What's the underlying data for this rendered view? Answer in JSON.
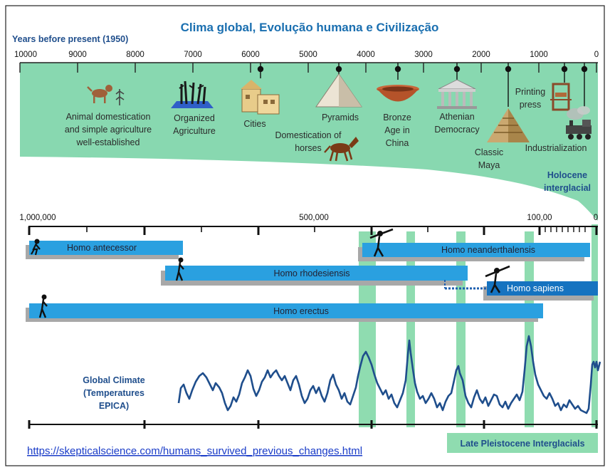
{
  "title": "Clima global, Evolução humana e Civilização",
  "top_axis": {
    "title": "Years before present (1950)",
    "ticks": [
      "10000",
      "9000",
      "8000",
      "7000",
      "6000",
      "5000",
      "4000",
      "3000",
      "2000",
      "1000",
      "0"
    ]
  },
  "events": [
    {
      "lines": [
        "Animal domestication",
        "and simple agriculture",
        "well-established"
      ],
      "icon": "dog-icon"
    },
    {
      "lines": [
        "Organized",
        "Agriculture"
      ],
      "icon": "crops-icon"
    },
    {
      "lines": [
        "Cities"
      ],
      "icon": "city-icon"
    },
    {
      "lines": [
        "Pyramids"
      ],
      "icon": "pyramid-icon"
    },
    {
      "lines": [
        "Domestication of",
        "horses"
      ],
      "icon": "horse-icon"
    },
    {
      "lines": [
        "Bronze",
        "Age in",
        "China"
      ],
      "icon": "bronze-bowl-icon"
    },
    {
      "lines": [
        "Athenian",
        "Democracy"
      ],
      "icon": "temple-icon"
    },
    {
      "lines": [
        "Classic",
        "Maya"
      ],
      "icon": "maya-pyramid-icon"
    },
    {
      "lines": [
        "Printing",
        "press"
      ],
      "icon": "printing-press-icon"
    },
    {
      "lines": [
        "Industrialization"
      ],
      "icon": "locomotive-icon"
    }
  ],
  "holocene_label": [
    "Holocene",
    "interglacial"
  ],
  "bottom_axis": {
    "ticks": [
      "1,000,000",
      "500,000",
      "100,00",
      "0"
    ]
  },
  "species": [
    {
      "name": "Homo antecessor"
    },
    {
      "name": "Homo neanderthalensis"
    },
    {
      "name": "Homo rhodesiensis"
    },
    {
      "name": "Homo sapiens"
    },
    {
      "name": "Homo erectus"
    }
  ],
  "climate_label": [
    "Global Climate",
    "(Temperatures",
    "EPICA)"
  ],
  "interglacial_label": "Late Pleistocene Interglacials",
  "source_link": "https://skepticalscience.com/humans_survived_previous_changes.html",
  "colors": {
    "holocene_green": "#88d8b0",
    "interglacial_green": "#8fdcb0",
    "species_blue": "#2aa0e0",
    "sapiens_blue": "#1673c0",
    "climate_line": "#1f4e8c",
    "title_blue": "#1a6fb0"
  }
}
